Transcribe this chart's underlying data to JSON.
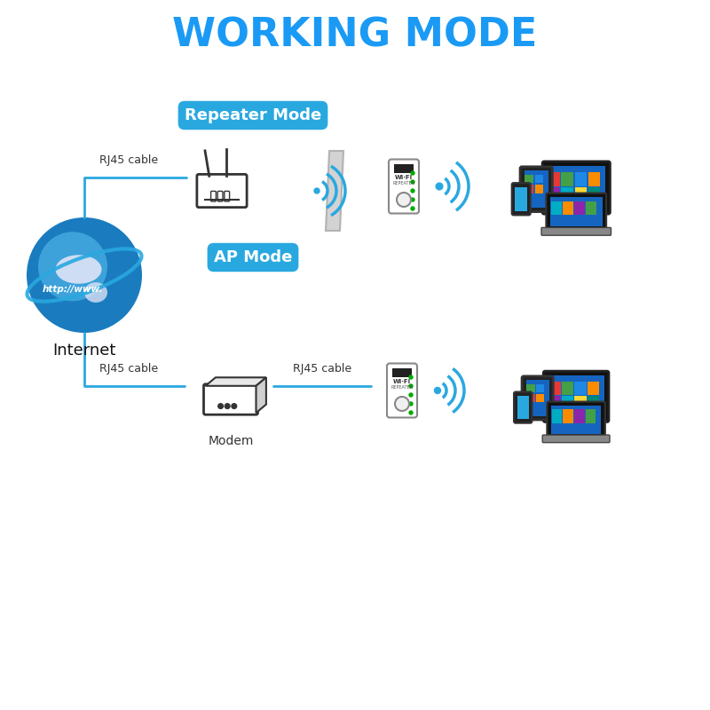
{
  "title": "WORKING MODE",
  "title_color": "#1a9af5",
  "title_fontsize": 32,
  "title_weight": "bold",
  "bg_color": "#ffffff",
  "repeater_label": "Repeater Mode",
  "ap_label": "AP Mode",
  "mode_label_color": "#ffffff",
  "mode_label_bg": "#29a8e0",
  "rj45_label": "RJ45 cable",
  "rj45_label2": "RJ45 cable",
  "internet_label": "Internet",
  "modem_label": "Modem",
  "line_color": "#29a8e0",
  "wifi_arc_color": "#29a8e0",
  "globe_blue": "#1a7cbf",
  "globe_light": "#4db3e6",
  "router_color": "#333333",
  "modem_color": "#333333",
  "repeater_color_body": "#f5f5f5",
  "repeater_color_dark": "#1a1a1a",
  "devices_blue": "#1565c0"
}
